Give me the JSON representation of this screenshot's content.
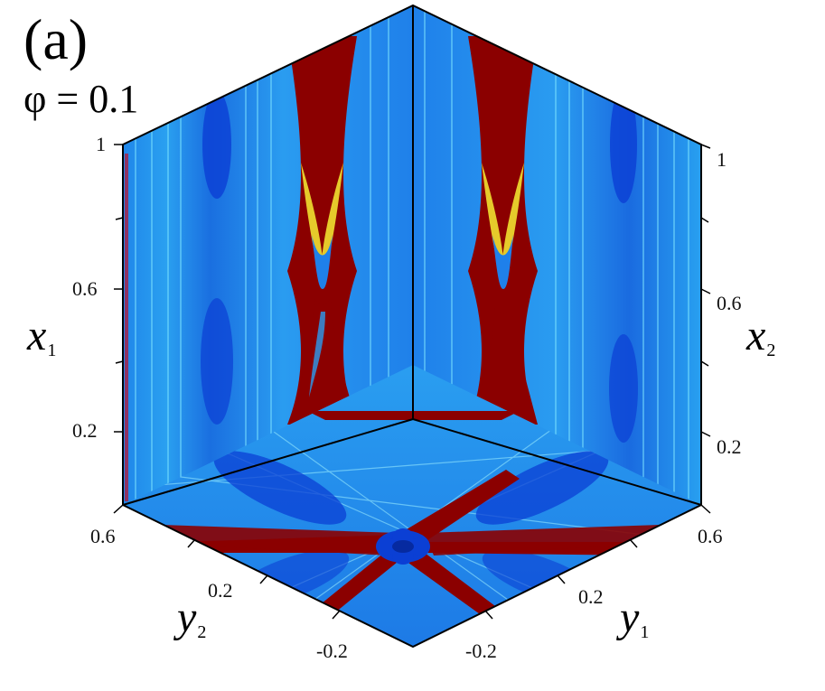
{
  "figure": {
    "panel_label": "(a)",
    "parameter": "φ = 0.1"
  },
  "axes": {
    "x1": {
      "symbol": "x",
      "subscript": "1",
      "ticks": [
        "1",
        "0.6",
        "0.2"
      ]
    },
    "x2": {
      "symbol": "x",
      "subscript": "2",
      "ticks": [
        "1",
        "0.6",
        "0.2"
      ]
    },
    "y1": {
      "symbol": "y",
      "subscript": "1",
      "ticks": [
        "0.6",
        "0.2",
        "-0.2"
      ]
    },
    "y2": {
      "symbol": "y",
      "subscript": "2",
      "ticks": [
        "0.6",
        "0.2",
        "-0.2"
      ]
    }
  },
  "colors": {
    "background_blue": "#1f7fe8",
    "deep_blue": "#0a2fcf",
    "cyan": "#2ad4f0",
    "yellow": "#f0e030",
    "dark_red": "#8b0000",
    "frame": "#000000"
  }
}
